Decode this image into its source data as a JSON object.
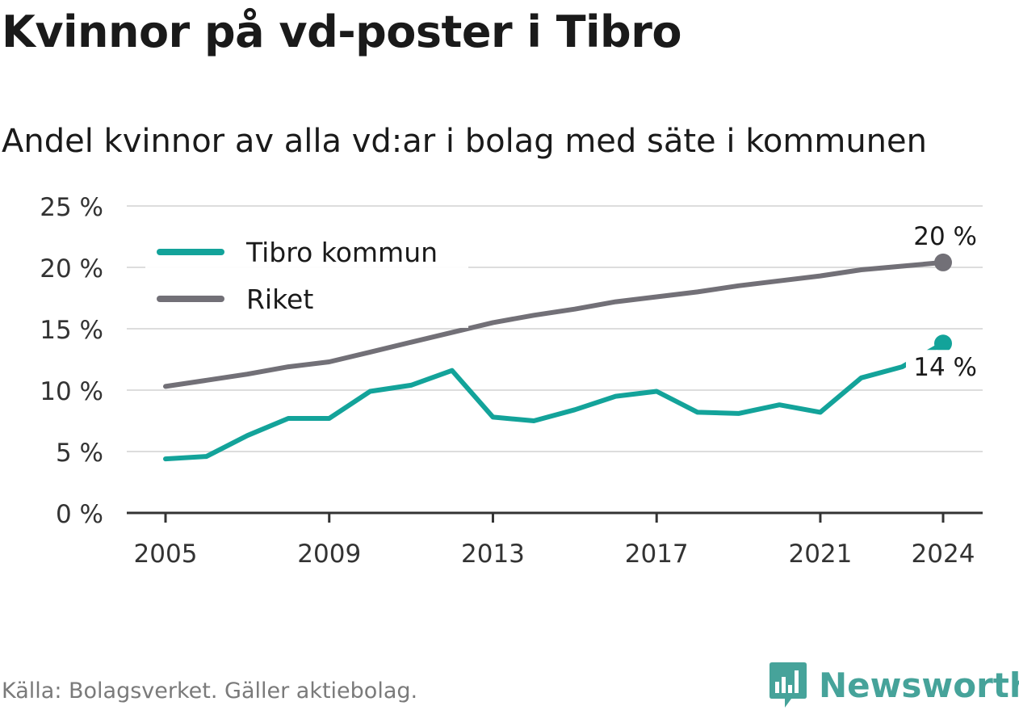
{
  "title": "Kvinnor på vd-poster i Tibro",
  "subtitle": "Andel kvinnor av alla vd:ar i bolag med säte i kommunen",
  "source": "Källa: Bolagsverket. Gäller aktiebolag.",
  "brand": "Newsworthy",
  "colors": {
    "tibro": "#13a39a",
    "riket": "#727077",
    "grid": "#dddddd",
    "axis": "#333333"
  },
  "chart_data": {
    "type": "line",
    "x": [
      2005,
      2006,
      2007,
      2008,
      2009,
      2010,
      2011,
      2012,
      2013,
      2014,
      2015,
      2016,
      2017,
      2018,
      2019,
      2020,
      2021,
      2022,
      2023,
      2024
    ],
    "series": [
      {
        "name": "Tibro kommun",
        "color": "#13a39a",
        "values": [
          4.4,
          4.6,
          6.3,
          7.7,
          7.7,
          9.9,
          10.4,
          11.6,
          7.8,
          7.5,
          8.4,
          9.5,
          9.9,
          8.2,
          8.1,
          8.8,
          8.2,
          11.0,
          11.9,
          13.8
        ],
        "end_label": "14 %"
      },
      {
        "name": "Riket",
        "color": "#727077",
        "values": [
          10.3,
          10.8,
          11.3,
          11.9,
          12.3,
          13.1,
          13.9,
          14.7,
          15.5,
          16.1,
          16.6,
          17.2,
          17.6,
          18.0,
          18.5,
          18.9,
          19.3,
          19.8,
          20.1,
          20.4
        ],
        "end_label": "20 %"
      }
    ],
    "ylim": [
      0,
      25
    ],
    "yticks": [
      0,
      5,
      10,
      15,
      20,
      25
    ],
    "ytick_labels": [
      "0 %",
      "5 %",
      "10 %",
      "15 %",
      "20 %",
      "25 %"
    ],
    "xticks": [
      2005,
      2009,
      2013,
      2017,
      2021,
      2024
    ],
    "xtick_labels": [
      "2005",
      "2009",
      "2013",
      "2017",
      "2021",
      "2024"
    ],
    "grid": true,
    "legend_position": "top-left"
  }
}
